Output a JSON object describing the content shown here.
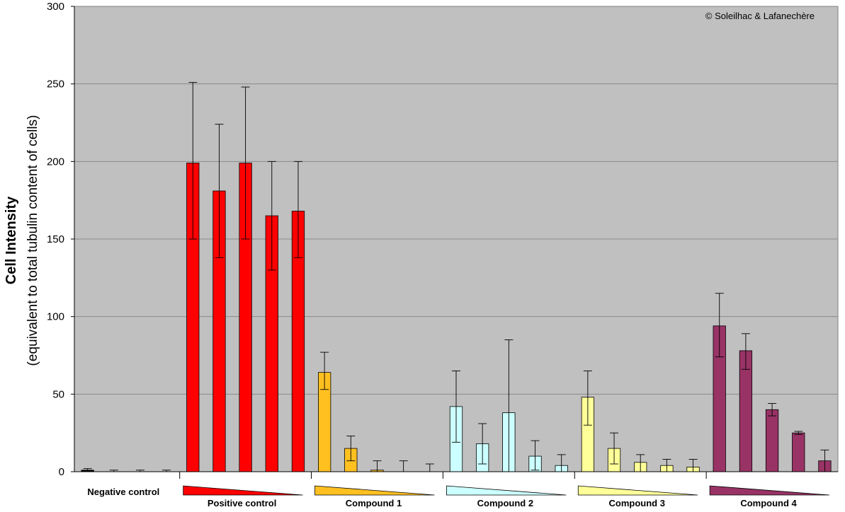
{
  "chart_data": {
    "type": "bar",
    "ylabel_main": "Cell Intensity",
    "ylabel_sub": "(equivalent to total tubulin content of cells)",
    "copyright": "© Soleilhac & Lafanechère",
    "ylim": [
      0,
      300
    ],
    "yticks": [
      "0",
      "50",
      "100",
      "150",
      "200",
      "250",
      "300"
    ],
    "grid": true,
    "background_color": "#c0c0c0",
    "groups": [
      {
        "name": "Negative control",
        "color": "#000000",
        "gradient": false,
        "values": [
          1,
          0,
          0,
          0
        ],
        "err_low": [
          0,
          0,
          0,
          0
        ],
        "err_high": [
          2,
          1,
          1,
          1
        ]
      },
      {
        "name": "Positive control",
        "color": "#ff0000",
        "gradient": true,
        "values": [
          199,
          181,
          199,
          165,
          168
        ],
        "err_low": [
          150,
          138,
          150,
          130,
          138
        ],
        "err_high": [
          251,
          224,
          248,
          200,
          200
        ]
      },
      {
        "name": "Compound 1",
        "color": "#ffc020",
        "gradient": true,
        "values": [
          64,
          15,
          1,
          0,
          0
        ],
        "err_low": [
          53,
          7,
          0,
          0,
          0
        ],
        "err_high": [
          77,
          23,
          7,
          7,
          5
        ]
      },
      {
        "name": "Compound 2",
        "color": "#ccffff",
        "gradient": true,
        "values": [
          42,
          18,
          38,
          10,
          4
        ],
        "err_low": [
          19,
          5,
          0,
          1,
          0
        ],
        "err_high": [
          65,
          31,
          85,
          20,
          11
        ]
      },
      {
        "name": "Compound 3",
        "color": "#ffff99",
        "gradient": true,
        "values": [
          48,
          15,
          6,
          4,
          3
        ],
        "err_low": [
          30,
          5,
          0,
          0,
          0
        ],
        "err_high": [
          65,
          25,
          11,
          8,
          8
        ]
      },
      {
        "name": "Compound 4",
        "color": "#993366",
        "gradient": true,
        "values": [
          94,
          78,
          40,
          25,
          7
        ],
        "err_low": [
          74,
          66,
          36,
          24,
          0
        ],
        "err_high": [
          115,
          89,
          44,
          26,
          14
        ]
      }
    ]
  }
}
